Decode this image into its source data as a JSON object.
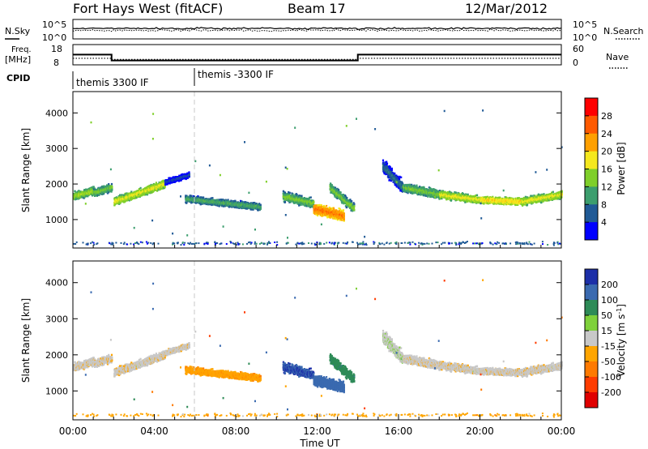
{
  "chart_data": {
    "type": "heatmap",
    "header": {
      "station": "Fort Hays West (fitACF)",
      "beam": "Beam 17",
      "date": "12/Mar/2012"
    },
    "top_panels": {
      "nsky_label": "N.Sky",
      "nsky_ticks": [
        "10^5",
        "10^0"
      ],
      "nsearch_label": "N.Search",
      "nsearch_ticks": [
        "10^5",
        "10^0"
      ],
      "freq_label_line1": "Freq.",
      "freq_label_line2": "[MHz]",
      "freq_ticks": [
        "18",
        "8"
      ],
      "nave_label": "Nave",
      "nave_ticks": [
        "60",
        "0"
      ],
      "cpid_label": "CPID",
      "cpid_segments": [
        {
          "label": "themis 3300 IF",
          "start_hour": 0,
          "end_hour": 6
        },
        {
          "label": "themis -3300 IF",
          "start_hour": 6,
          "end_hour": 24
        }
      ],
      "freq_series_mhz": [
        {
          "start_hour": 0,
          "end_hour": 1.9,
          "value": 15
        },
        {
          "start_hour": 1.9,
          "end_hour": 14.0,
          "value": 11
        },
        {
          "start_hour": 14.0,
          "end_hour": 24,
          "value": 15
        }
      ],
      "nave_series": [
        {
          "start_hour": 0,
          "end_hour": 1.9,
          "value": 22
        },
        {
          "start_hour": 1.9,
          "end_hour": 14.0,
          "value": 18
        },
        {
          "start_hour": 14.0,
          "end_hour": 24,
          "value": 22
        }
      ]
    },
    "panels": [
      {
        "id": "power",
        "ylabel": "Slant Range [km]",
        "ylim": [
          200,
          4600
        ],
        "yticks": [
          1000,
          2000,
          3000,
          4000
        ],
        "colorbar_label": "Power [dB]",
        "colorbar_ticks": [
          "28",
          "24",
          "20",
          "16",
          "12",
          "8",
          "4"
        ],
        "colorbar_colors": [
          "#ff0000",
          "#ff5a00",
          "#ffa000",
          "#f5e81e",
          "#7fcf2a",
          "#3c9e6e",
          "#205a96",
          "#0000ff"
        ]
      },
      {
        "id": "velocity",
        "ylabel": "Slant Range [km]",
        "ylim": [
          200,
          4600
        ],
        "yticks": [
          1000,
          2000,
          3000,
          4000
        ],
        "colorbar_label": "Velocity [m s",
        "colorbar_label_sup": "-1",
        "colorbar_label_end": "]",
        "colorbar_ticks": [
          "200",
          "100",
          "50",
          "15",
          "-15",
          "-50",
          "-100",
          "-200"
        ],
        "colorbar_colors": [
          "#1c2fa8",
          "#3a6ab0",
          "#2e8b57",
          "#7fd13b",
          "#c8c8c8",
          "#ffa500",
          "#ff7a00",
          "#ff3c00",
          "#e00000"
        ]
      }
    ],
    "x": {
      "xlabel": "Time UT",
      "xlim_hours": [
        0,
        24
      ],
      "tick_labels": [
        "00:00",
        "04:00",
        "08:00",
        "12:00",
        "16:00",
        "20:00",
        "00:00"
      ],
      "tick_hours": [
        0,
        4,
        8,
        12,
        16,
        20,
        24
      ]
    },
    "echo_regions": [
      {
        "t0": 0.0,
        "t1": 1.0,
        "r_start": 1650,
        "r_end": 1800,
        "width": 300,
        "power": 16,
        "velocity": -5
      },
      {
        "t0": 1.0,
        "t1": 1.9,
        "r_start": 1750,
        "r_end": 1900,
        "width": 280,
        "power": 14,
        "velocity": -5
      },
      {
        "t0": 2.0,
        "t1": 4.5,
        "r_start": 1500,
        "r_end": 2000,
        "width": 300,
        "power": 18,
        "velocity": -5
      },
      {
        "t0": 4.5,
        "t1": 5.7,
        "r_start": 2050,
        "r_end": 2250,
        "width": 200,
        "power": 6,
        "velocity": -5
      },
      {
        "t0": 5.5,
        "t1": 9.2,
        "r_start": 1580,
        "r_end": 1350,
        "width": 250,
        "power": 12,
        "velocity": -40
      },
      {
        "t0": 10.3,
        "t1": 11.8,
        "r_start": 1650,
        "r_end": 1450,
        "width": 350,
        "power": 14,
        "velocity": 150
      },
      {
        "t0": 11.8,
        "t1": 13.3,
        "r_start": 1300,
        "r_end": 1100,
        "width": 400,
        "power": 25,
        "velocity": 100
      },
      {
        "t0": 12.6,
        "t1": 13.8,
        "r_start": 1900,
        "r_end": 1300,
        "width": 350,
        "power": 14,
        "velocity": 60
      },
      {
        "t0": 15.2,
        "t1": 16.2,
        "r_start": 2500,
        "r_end": 1900,
        "width": 500,
        "power": 8,
        "velocity": 10
      },
      {
        "t0": 16.2,
        "t1": 18.0,
        "r_start": 1900,
        "r_end": 1700,
        "width": 320,
        "power": 14,
        "velocity": -5
      },
      {
        "t0": 18.0,
        "t1": 20.0,
        "r_start": 1700,
        "r_end": 1550,
        "width": 280,
        "power": 18,
        "velocity": -5
      },
      {
        "t0": 20.0,
        "t1": 22.0,
        "r_start": 1550,
        "r_end": 1500,
        "width": 250,
        "power": 20,
        "velocity": -5
      },
      {
        "t0": 22.0,
        "t1": 24.0,
        "r_start": 1500,
        "r_end": 1700,
        "width": 280,
        "power": 18,
        "velocity": -5
      }
    ],
    "ground_band": {
      "range_km": 330,
      "power": 6,
      "velocity": -30
    }
  }
}
